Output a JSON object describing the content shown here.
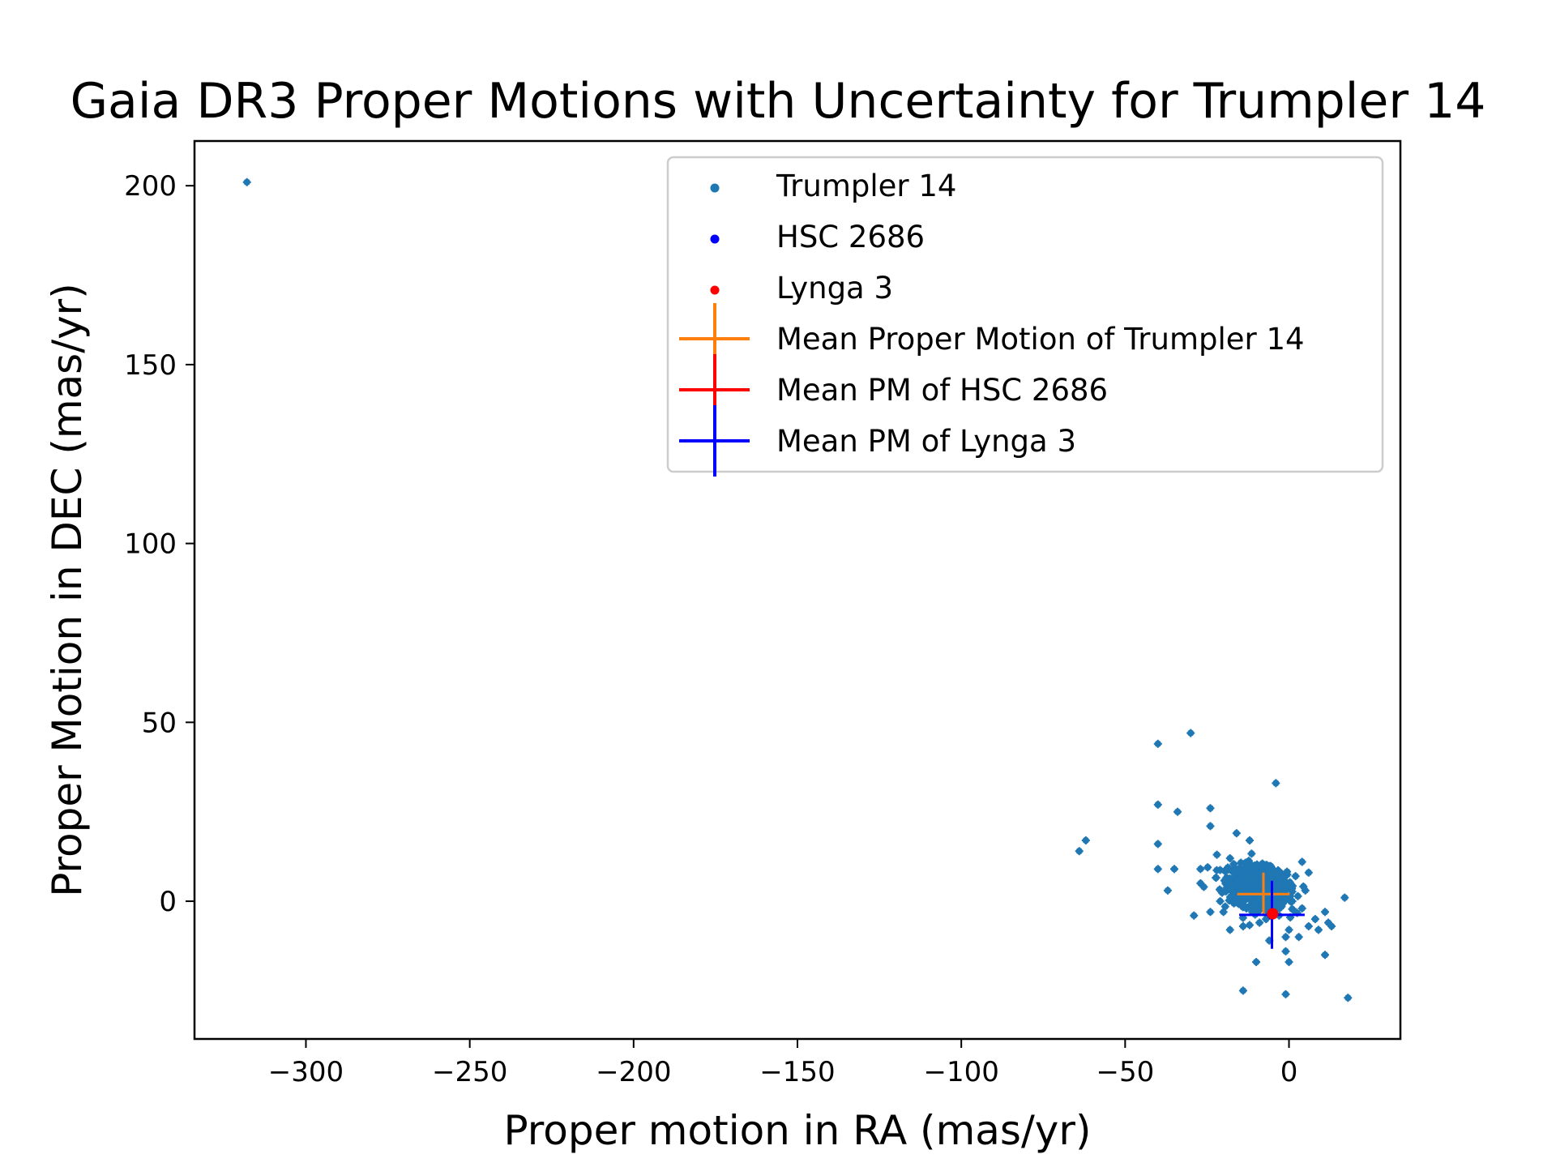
{
  "chart_data": {
    "type": "scatter",
    "title": "Gaia DR3 Proper Motions with Uncertainty for Trumpler 14",
    "xlabel": "Proper motion in RA (mas/yr)",
    "ylabel": "Proper Motion in DEC (mas/yr)",
    "xlim": [
      -334,
      34
    ],
    "ylim": [
      -38.5,
      212.5
    ],
    "xticks": [
      -300,
      -250,
      -200,
      -150,
      -100,
      -50,
      0
    ],
    "yticks": [
      0,
      50,
      100,
      150,
      200
    ],
    "xtick_labels": [
      "−300",
      "−250",
      "−200",
      "−150",
      "−100",
      "−50",
      "0"
    ],
    "ytick_labels": [
      "0",
      "50",
      "100",
      "150",
      "200"
    ],
    "grid": false,
    "legend_position": "top-right",
    "legend": [
      {
        "label": "Trumpler 14",
        "kind": "point",
        "color": "#1f77b4"
      },
      {
        "label": "HSC 2686",
        "kind": "point",
        "color": "#0000ff"
      },
      {
        "label": "Lynga 3",
        "kind": "point",
        "color": "#ff0000"
      },
      {
        "label": "Mean Proper Motion of Trumpler 14",
        "kind": "errorbar",
        "color": "#ff7f0e"
      },
      {
        "label": "Mean PM of HSC 2686",
        "kind": "errorbar",
        "color": "#ff0000"
      },
      {
        "label": "Mean PM of Lynga 3",
        "kind": "errorbar",
        "color": "#0000ff"
      }
    ],
    "series": [
      {
        "name": "Trumpler 14",
        "color": "#1f77b4",
        "core": {
          "center": [
            -9.5,
            4.0
          ],
          "spread": [
            8,
            5
          ],
          "count": 900,
          "x_range": [
            -28,
            6
          ],
          "y_range": [
            -8,
            14
          ]
        },
        "points": [
          [
            -318,
            201
          ],
          [
            -64,
            14
          ],
          [
            -62,
            17
          ],
          [
            -40,
            44
          ],
          [
            -30,
            47
          ],
          [
            -40,
            27
          ],
          [
            -34,
            25
          ],
          [
            -24,
            26
          ],
          [
            -40,
            16
          ],
          [
            -40,
            9
          ],
          [
            -35,
            9
          ],
          [
            -37,
            3
          ],
          [
            -4,
            33
          ],
          [
            -24,
            21
          ],
          [
            -27,
            9
          ],
          [
            -27,
            5
          ],
          [
            -22,
            13
          ],
          [
            -16,
            19
          ],
          [
            -12,
            17
          ],
          [
            -10,
            10
          ],
          [
            -18,
            12
          ],
          [
            -13,
            -2
          ],
          [
            -20,
            -3
          ],
          [
            -18,
            -8
          ],
          [
            -14,
            -7
          ],
          [
            -9,
            -6
          ],
          [
            -7,
            -5
          ],
          [
            -3,
            -4
          ],
          [
            -1,
            -10
          ],
          [
            0,
            -8
          ],
          [
            2,
            -3
          ],
          [
            4,
            -2
          ],
          [
            6,
            -7
          ],
          [
            8,
            -5
          ],
          [
            11,
            -3
          ],
          [
            12,
            -6
          ],
          [
            13,
            -7
          ],
          [
            17,
            1
          ],
          [
            11,
            -15
          ],
          [
            5,
            3
          ],
          [
            4,
            11
          ],
          [
            2,
            7
          ],
          [
            6,
            8
          ],
          [
            -6,
            -11
          ],
          [
            -10,
            -17
          ],
          [
            -1,
            -14
          ],
          [
            0,
            -17
          ],
          [
            -14,
            -25
          ],
          [
            -1,
            -26
          ],
          [
            18,
            -27
          ],
          [
            -29,
            -4
          ],
          [
            -24,
            -3
          ],
          [
            -21,
            0
          ],
          [
            3,
            -10
          ],
          [
            9,
            -8
          ],
          [
            -2,
            2
          ],
          [
            1,
            0
          ],
          [
            -26,
            4
          ]
        ]
      },
      {
        "name": "HSC 2686",
        "color": "#0000ff",
        "points": [
          [
            -5.2,
            -3.8
          ]
        ]
      },
      {
        "name": "Lynga 3",
        "color": "#ff0000",
        "points": [
          [
            -5.0,
            -3.5
          ]
        ]
      }
    ],
    "mean_errorbars": [
      {
        "name": "Mean Proper Motion of Trumpler 14",
        "color": "#ff7f0e",
        "x": -7.8,
        "y": 2.0,
        "xerr": 8.0,
        "yerr": 6.0
      },
      {
        "name": "Mean PM of HSC 2686",
        "color": "#ff0000",
        "x": -5.0,
        "y": -3.5,
        "xerr": 1.5,
        "yerr": 1.5
      },
      {
        "name": "Mean PM of Lynga 3",
        "color": "#0000ff",
        "x": -5.2,
        "y": -3.8,
        "xerr": 10.0,
        "yerr": 9.5
      }
    ]
  }
}
